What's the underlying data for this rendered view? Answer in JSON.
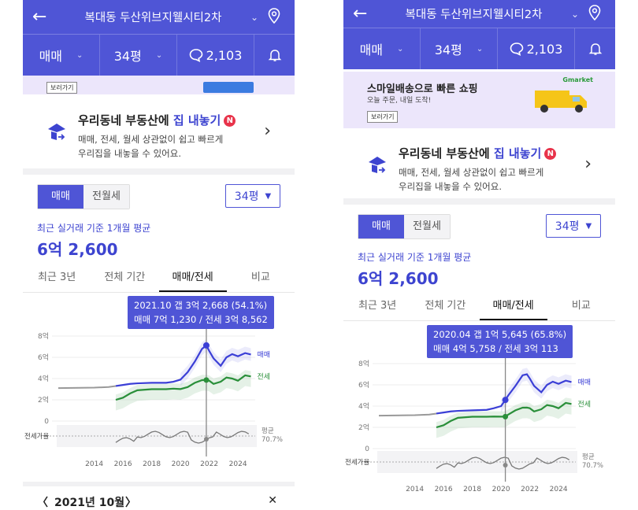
{
  "phones": [
    {
      "header": {
        "back_icon": "back-arrow-icon",
        "title": "복대동 두산위브지웰시티2차",
        "location_icon": "map-pin-icon"
      },
      "filters": {
        "deal_type": "매매",
        "size": "34평",
        "comment_count": "2,103"
      },
      "banner": {
        "button": "보러가기"
      },
      "listing": {
        "title_prefix": "우리동네 부동산에 ",
        "title_highlight": "집 내놓기",
        "badge": "N",
        "desc_line1": "매매, 전세, 월세 상관없이 쉽고 빠르게",
        "desc_line2": "우리집을 내놓을 수 있어요."
      },
      "segment": {
        "sale": "매매",
        "rent": "전월세"
      },
      "size_button": "34평",
      "average": {
        "label": "최근 실거래 기준 1개월 평균",
        "value": "6억 2,600"
      },
      "tabs": [
        "최근 3년",
        "전체 기간",
        "매매/전세",
        "비교"
      ],
      "tooltip": {
        "line1": "2021.10  갭 3억 2,668 (54.1%)",
        "line2": "매매 7억 1,230 / 전세 3억 8,562"
      },
      "bottom": {
        "prev": "〈",
        "date": "2021년 10월",
        "next": "〉",
        "close": "✕"
      }
    },
    {
      "header": {
        "back_icon": "back-arrow-icon",
        "title": "복대동 두산위브지웰시티2차",
        "location_icon": "map-pin-icon"
      },
      "filters": {
        "deal_type": "매매",
        "size": "34평",
        "comment_count": "2,103"
      },
      "banner": {
        "title": "스마일배송으로 빠른 쇼핑",
        "subtitle": "오늘 주문, 내일 도착!",
        "button": "보러가기",
        "brand": "Gmarket"
      },
      "listing": {
        "title_prefix": "우리동네 부동산에 ",
        "title_highlight": "집 내놓기",
        "badge": "N",
        "desc_line1": "매매, 전세, 월세 상관없이 쉽고 빠르게",
        "desc_line2": "우리집을 내놓을 수 있어요."
      },
      "segment": {
        "sale": "매매",
        "rent": "전월세"
      },
      "size_button": "34평",
      "average": {
        "label": "최근 실거래 기준 1개월 평균",
        "value": "6억 2,600"
      },
      "tabs": [
        "최근 3년",
        "전체 기간",
        "매매/전세",
        "비교"
      ],
      "tooltip": {
        "line1": "2020.04  갭 1억 5,645 (65.8%)",
        "line2": "매매 4억 5,758 / 전세 3억 113"
      }
    }
  ],
  "chart_data": [
    {
      "type": "line",
      "x": [
        2011.5,
        2014,
        2015,
        2015.5,
        2016,
        2016.5,
        2017,
        2018,
        2019,
        2019.5,
        2020,
        2020.5,
        2021,
        2021.5,
        2021.8,
        2022,
        2022.3,
        2022.8,
        2023.2,
        2023.6,
        2024,
        2024.5,
        2024.9
      ],
      "series": [
        {
          "name": "매매",
          "color": "#3b3fd6",
          "values": [
            3.1,
            3.15,
            3.2,
            3.3,
            3.4,
            3.5,
            3.55,
            3.6,
            3.6,
            3.7,
            3.9,
            4.6,
            5.6,
            6.8,
            7.12,
            6.6,
            5.9,
            5.2,
            6.0,
            6.3,
            6.1,
            6.4,
            6.26
          ]
        },
        {
          "name": "전세",
          "color": "#2a8f3a",
          "values": [
            null,
            null,
            null,
            2.0,
            2.2,
            2.6,
            2.9,
            3.0,
            3.0,
            3.05,
            3.01,
            3.2,
            3.6,
            3.85,
            3.86,
            3.8,
            3.5,
            3.7,
            4.1,
            4.0,
            3.8,
            4.3,
            4.2
          ]
        }
      ],
      "yticks": [
        "8억",
        "6억",
        "4억",
        "2억",
        "0"
      ],
      "ylim": [
        0,
        8
      ],
      "xticks": [
        "2014",
        "2016",
        "2018",
        "2020",
        "2022",
        "2024"
      ],
      "ratio_label": "전세가율",
      "average_label": "평균",
      "average_value": "70.7%",
      "selected_x": 2021.8
    },
    {
      "type": "line",
      "x": [
        2011.5,
        2014,
        2015,
        2015.5,
        2016,
        2016.5,
        2017,
        2018,
        2019,
        2019.5,
        2020,
        2020.3,
        2020.5,
        2021,
        2021.5,
        2021.8,
        2022,
        2022.3,
        2022.8,
        2023.2,
        2023.6,
        2024,
        2024.5,
        2024.9
      ],
      "series": [
        {
          "name": "매매",
          "color": "#3b3fd6",
          "values": [
            3.1,
            3.15,
            3.2,
            3.3,
            3.4,
            3.5,
            3.55,
            3.6,
            3.65,
            3.8,
            4.0,
            4.58,
            5.0,
            5.9,
            6.9,
            7.0,
            6.6,
            5.9,
            5.3,
            6.0,
            6.3,
            6.1,
            6.4,
            6.26
          ]
        },
        {
          "name": "전세",
          "color": "#2a8f3a",
          "values": [
            null,
            null,
            null,
            2.0,
            2.2,
            2.6,
            2.9,
            3.0,
            3.0,
            3.02,
            3.01,
            3.01,
            3.2,
            3.6,
            3.85,
            3.86,
            3.8,
            3.5,
            3.7,
            4.1,
            4.0,
            3.8,
            4.3,
            4.2
          ]
        }
      ],
      "yticks": [
        "8억",
        "6억",
        "4억",
        "2억",
        "0"
      ],
      "ylim": [
        0,
        8
      ],
      "xticks": [
        "2014",
        "2016",
        "2018",
        "2020",
        "2022",
        "2024"
      ],
      "ratio_label": "전세가율",
      "average_label": "평균",
      "average_value": "70.7%",
      "selected_x": 2020.3
    }
  ]
}
